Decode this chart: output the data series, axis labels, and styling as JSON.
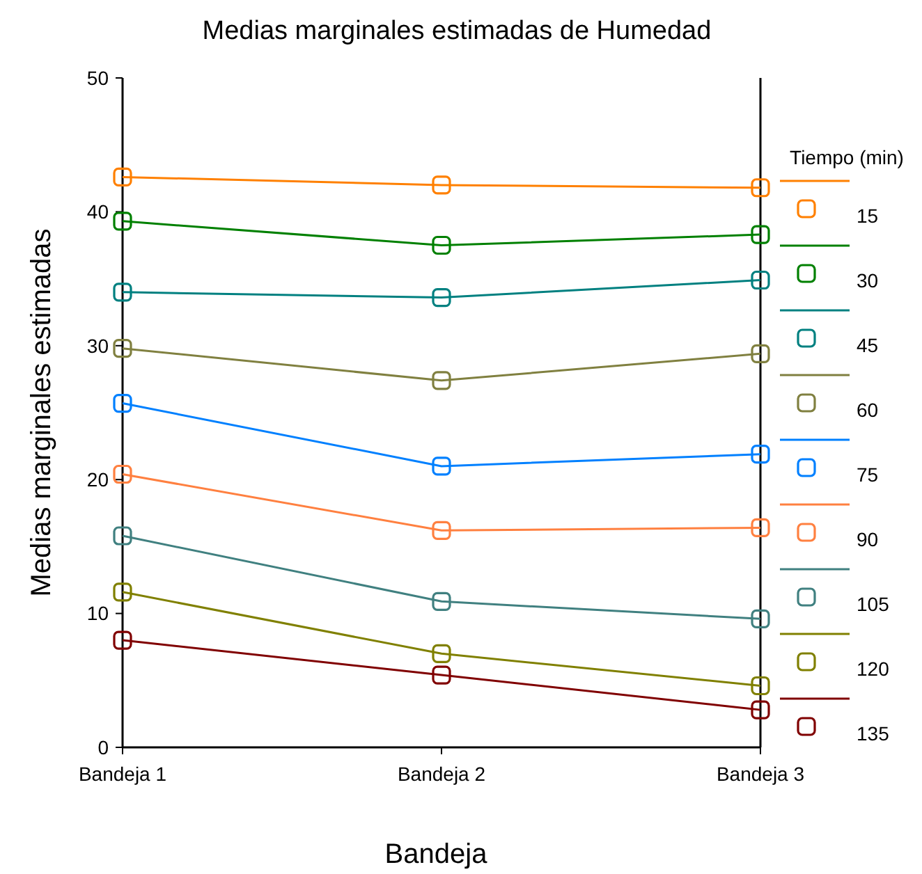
{
  "chart_data": {
    "type": "line",
    "title": "Medias marginales estimadas de Humedad",
    "xlabel": "Bandeja",
    "ylabel": "Medias marginales estimadas",
    "legend_title": "Tiempo (min)",
    "categories": [
      "Bandeja 1",
      "Bandeja 2",
      "Bandeja 3"
    ],
    "ylim": [
      0,
      50
    ],
    "yticks": [
      0,
      10,
      20,
      30,
      40,
      50
    ],
    "grid": false,
    "legend": "right",
    "marker": "square",
    "line_style": "solid",
    "series": [
      {
        "name": "15",
        "color": "#ff8000",
        "values": [
          42.6,
          42.0,
          41.8
        ]
      },
      {
        "name": "30",
        "color": "#008000",
        "values": [
          39.3,
          37.5,
          38.3
        ]
      },
      {
        "name": "45",
        "color": "#008080",
        "values": [
          34.0,
          33.6,
          34.9
        ]
      },
      {
        "name": "60",
        "color": "#808040",
        "values": [
          29.8,
          27.4,
          29.4
        ]
      },
      {
        "name": "75",
        "color": "#0080ff",
        "values": [
          25.7,
          21.0,
          21.9
        ]
      },
      {
        "name": "90",
        "color": "#ff8040",
        "values": [
          20.4,
          16.2,
          16.4
        ]
      },
      {
        "name": "105",
        "color": "#408080",
        "values": [
          15.8,
          10.9,
          9.6
        ]
      },
      {
        "name": "120",
        "color": "#808000",
        "values": [
          11.6,
          7.0,
          4.6
        ]
      },
      {
        "name": "135",
        "color": "#800000",
        "values": [
          8.0,
          5.4,
          2.8
        ]
      }
    ]
  }
}
